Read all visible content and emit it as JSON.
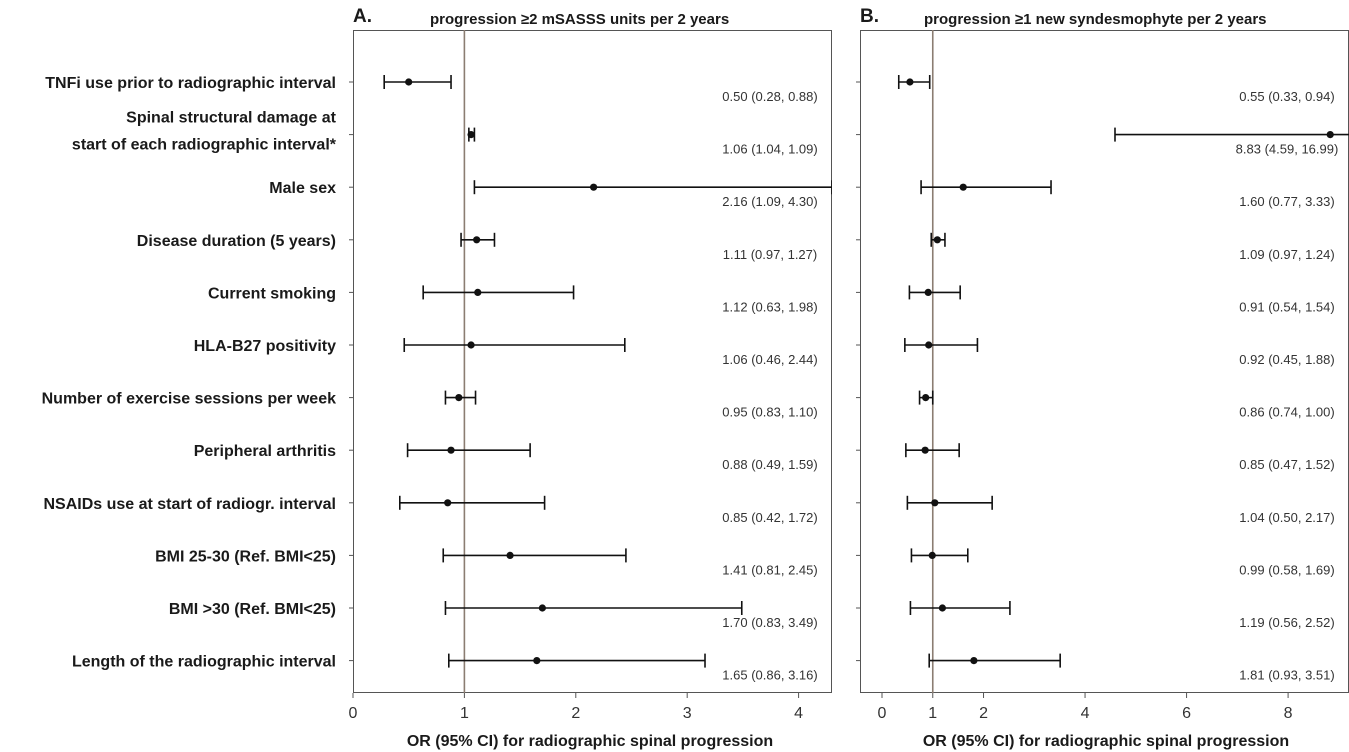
{
  "chart_data": {
    "type": "forest",
    "categories": [
      [
        "TNFi use prior to radiographic interval"
      ],
      [
        "Spinal structural damage at",
        "start of each radiographic interval*"
      ],
      [
        "Male sex"
      ],
      [
        "Disease duration (5 years)"
      ],
      [
        "Current smoking"
      ],
      [
        "HLA-B27 positivity"
      ],
      [
        "Number of exercise sessions per week"
      ],
      [
        "Peripheral arthritis"
      ],
      [
        "NSAIDs use at start of radiogr. interval"
      ],
      [
        "BMI 25-30 (Ref. BMI<25)"
      ],
      [
        "BMI >30 (Ref. BMI<25)"
      ],
      [
        "Length of the radiographic interval"
      ]
    ],
    "panels": [
      {
        "letter": "A.",
        "title": "progression ≥2 mSASSS units per 2 years",
        "xlabel": "OR (95% CI) for radiographic spinal progression",
        "xlim": [
          0,
          4.3
        ],
        "xticks": [
          0,
          1,
          2,
          3,
          4
        ],
        "reference_line": 1,
        "rows": [
          {
            "or": 0.5,
            "lo": 0.28,
            "hi": 0.88,
            "text": "0.50 (0.28, 0.88)"
          },
          {
            "or": 1.06,
            "lo": 1.04,
            "hi": 1.09,
            "text": "1.06 (1.04, 1.09)"
          },
          {
            "or": 2.16,
            "lo": 1.09,
            "hi": 4.3,
            "text": "2.16 (1.09, 4.30)"
          },
          {
            "or": 1.11,
            "lo": 0.97,
            "hi": 1.27,
            "text": "1.11 (0.97, 1.27)"
          },
          {
            "or": 1.12,
            "lo": 0.63,
            "hi": 1.98,
            "text": "1.12 (0.63, 1.98)"
          },
          {
            "or": 1.06,
            "lo": 0.46,
            "hi": 2.44,
            "text": "1.06 (0.46, 2.44)"
          },
          {
            "or": 0.95,
            "lo": 0.83,
            "hi": 1.1,
            "text": "0.95 (0.83, 1.10)"
          },
          {
            "or": 0.88,
            "lo": 0.49,
            "hi": 1.59,
            "text": "0.88 (0.49, 1.59)"
          },
          {
            "or": 0.85,
            "lo": 0.42,
            "hi": 1.72,
            "text": "0.85 (0.42, 1.72)"
          },
          {
            "or": 1.41,
            "lo": 0.81,
            "hi": 2.45,
            "text": "1.41 (0.81, 2.45)"
          },
          {
            "or": 1.7,
            "lo": 0.83,
            "hi": 3.49,
            "text": "1.70 (0.83, 3.49)"
          },
          {
            "or": 1.65,
            "lo": 0.86,
            "hi": 3.16,
            "text": "1.65 (0.86, 3.16)"
          }
        ]
      },
      {
        "letter": "B.",
        "title": "progression ≥1 new syndesmophyte per 2 years",
        "xlabel": "OR (95% CI) for radiographic spinal progression",
        "xlim": [
          0,
          9.2
        ],
        "xticks": [
          0,
          1,
          2,
          4,
          6,
          8
        ],
        "reference_line": 1,
        "rows": [
          {
            "or": 0.55,
            "lo": 0.33,
            "hi": 0.94,
            "text": "0.55 (0.33, 0.94)"
          },
          {
            "or": 8.83,
            "lo": 4.59,
            "hi": 16.99,
            "text": "8.83 (4.59, 16.99)"
          },
          {
            "or": 1.6,
            "lo": 0.77,
            "hi": 3.33,
            "text": "1.60 (0.77, 3.33)"
          },
          {
            "or": 1.09,
            "lo": 0.97,
            "hi": 1.24,
            "text": "1.09 (0.97, 1.24)"
          },
          {
            "or": 0.91,
            "lo": 0.54,
            "hi": 1.54,
            "text": "0.91 (0.54, 1.54)"
          },
          {
            "or": 0.92,
            "lo": 0.45,
            "hi": 1.88,
            "text": "0.92 (0.45, 1.88)"
          },
          {
            "or": 0.86,
            "lo": 0.74,
            "hi": 1.0,
            "text": "0.86 (0.74, 1.00)"
          },
          {
            "or": 0.85,
            "lo": 0.47,
            "hi": 1.52,
            "text": "0.85 (0.47, 1.52)"
          },
          {
            "or": 1.04,
            "lo": 0.5,
            "hi": 2.17,
            "text": "1.04 (0.50, 2.17)"
          },
          {
            "or": 0.99,
            "lo": 0.58,
            "hi": 1.69,
            "text": "0.99 (0.58, 1.69)"
          },
          {
            "or": 1.19,
            "lo": 0.56,
            "hi": 2.52,
            "text": "1.19 (0.56, 2.52)"
          },
          {
            "or": 1.81,
            "lo": 0.93,
            "hi": 3.51,
            "text": "1.81 (0.93, 3.51)"
          }
        ]
      }
    ],
    "colors": {
      "reference_line": "#8b7d72",
      "marks": "#111111",
      "frame": "#555555"
    }
  }
}
